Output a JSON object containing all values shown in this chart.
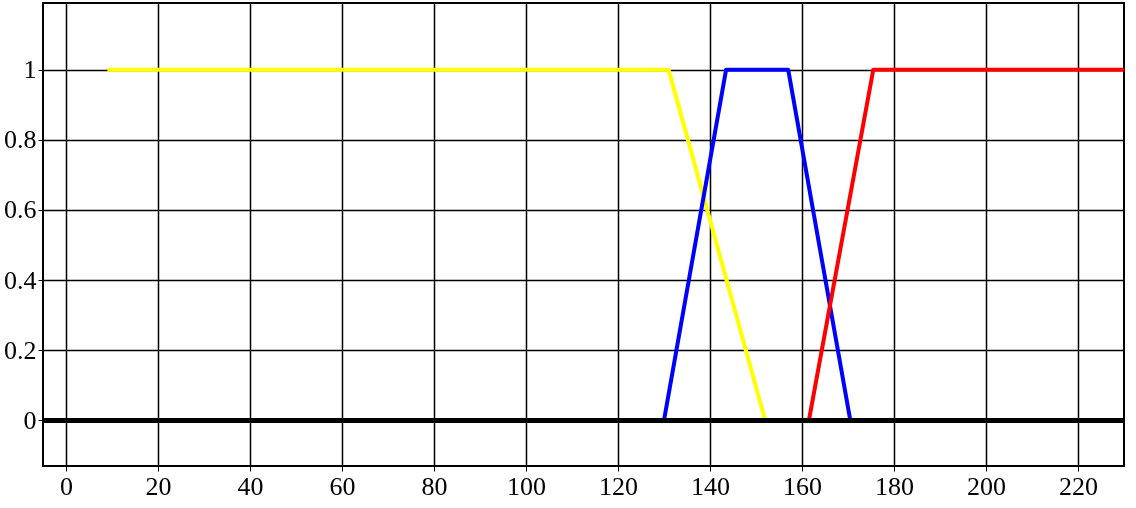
{
  "chart_data": {
    "type": "line",
    "series": [
      {
        "color": "#ffff00",
        "x": [
          9,
          131,
          152
        ],
        "values": [
          1,
          1,
          0
        ]
      },
      {
        "color": "#0000ff",
        "x": [
          130,
          143.5,
          157,
          170.5
        ],
        "values": [
          0,
          1,
          1,
          0
        ]
      },
      {
        "color": "#ff0000",
        "x": [
          161.5,
          175.5,
          230
        ],
        "values": [
          0,
          1,
          1
        ]
      }
    ],
    "xlim": [
      -5,
      230
    ],
    "xticks": [
      0,
      20,
      40,
      60,
      80,
      100,
      120,
      140,
      160,
      180,
      200,
      220
    ],
    "ylim": [
      -0.13,
      1.19
    ],
    "yticks": [
      0,
      0.2,
      0.4,
      0.6,
      0.8,
      1
    ],
    "grid": true,
    "legend": false,
    "marker": "none",
    "line_style": "solid",
    "ref_lines": [
      {
        "axis": "y",
        "value": 0,
        "color": "#000000"
      }
    ]
  }
}
